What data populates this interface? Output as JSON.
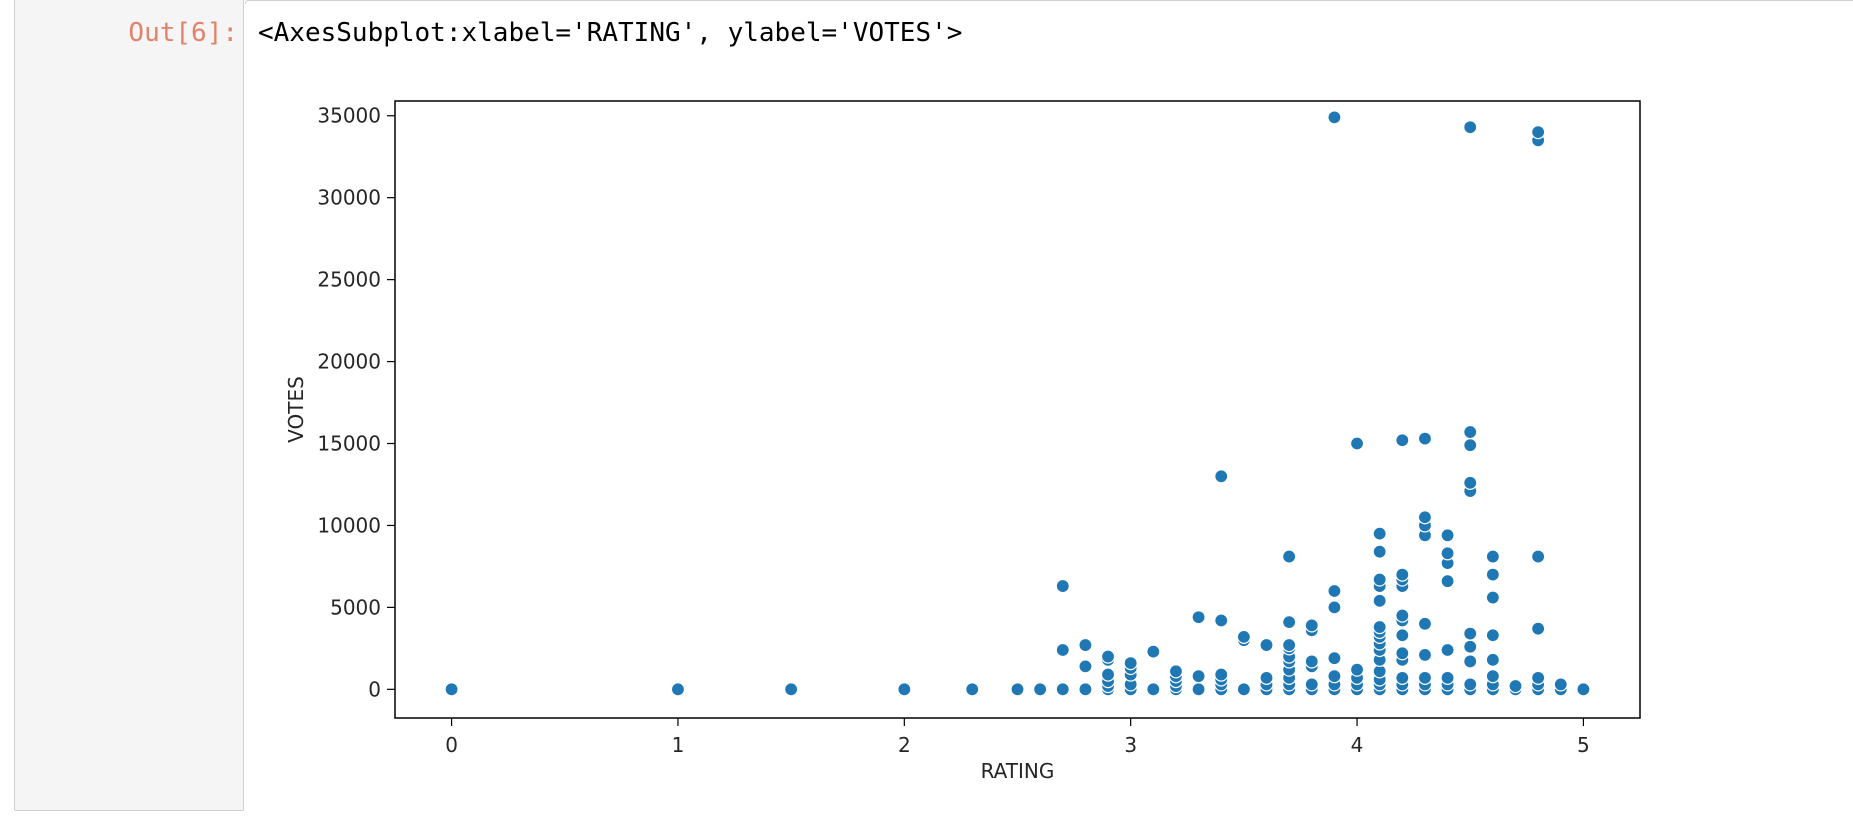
{
  "cell": {
    "prompt": "Out[6]:",
    "repr": "<AxesSubplot:xlabel='RATING', ylabel='VOTES'>"
  },
  "chart_data": {
    "type": "scatter",
    "title": "",
    "xlabel": "RATING",
    "ylabel": "VOTES",
    "xlim": [
      -0.25,
      5.25
    ],
    "ylim": [
      -1750,
      35900
    ],
    "xticks": [
      0,
      1,
      2,
      3,
      4,
      5
    ],
    "yticks": [
      0,
      5000,
      10000,
      15000,
      20000,
      25000,
      30000,
      35000
    ],
    "grid": false,
    "marker_color": "#1f77b4",
    "series": [
      {
        "points": [
          [
            0,
            0
          ],
          [
            1,
            0
          ],
          [
            1.5,
            0
          ],
          [
            2,
            0
          ],
          [
            2.3,
            0
          ],
          [
            2.5,
            0
          ],
          [
            2.6,
            0
          ],
          [
            2.7,
            0
          ],
          [
            2.7,
            2400
          ],
          [
            2.7,
            6300
          ],
          [
            2.8,
            0
          ],
          [
            2.8,
            1400
          ],
          [
            2.8,
            2700
          ],
          [
            2.9,
            0
          ],
          [
            2.9,
            200
          ],
          [
            2.9,
            500
          ],
          [
            2.9,
            900
          ],
          [
            2.9,
            1800
          ],
          [
            2.9,
            2000
          ],
          [
            3.0,
            0
          ],
          [
            3.0,
            300
          ],
          [
            3.0,
            900
          ],
          [
            3.0,
            1300
          ],
          [
            3.0,
            1600
          ],
          [
            3.1,
            0
          ],
          [
            3.1,
            2300
          ],
          [
            3.2,
            0
          ],
          [
            3.2,
            200
          ],
          [
            3.2,
            500
          ],
          [
            3.2,
            800
          ],
          [
            3.2,
            1100
          ],
          [
            3.3,
            0
          ],
          [
            3.3,
            800
          ],
          [
            3.3,
            4400
          ],
          [
            3.4,
            0
          ],
          [
            3.4,
            300
          ],
          [
            3.4,
            600
          ],
          [
            3.4,
            900
          ],
          [
            3.4,
            4200
          ],
          [
            3.4,
            13000
          ],
          [
            3.5,
            0
          ],
          [
            3.5,
            3000
          ],
          [
            3.5,
            3200
          ],
          [
            3.6,
            0
          ],
          [
            3.6,
            300
          ],
          [
            3.6,
            700
          ],
          [
            3.6,
            2700
          ],
          [
            3.7,
            0
          ],
          [
            3.7,
            300
          ],
          [
            3.7,
            700
          ],
          [
            3.7,
            1200
          ],
          [
            3.7,
            1700
          ],
          [
            3.7,
            2000
          ],
          [
            3.7,
            2500
          ],
          [
            3.7,
            2700
          ],
          [
            3.7,
            4100
          ],
          [
            3.7,
            8100
          ],
          [
            3.8,
            0
          ],
          [
            3.8,
            300
          ],
          [
            3.8,
            1400
          ],
          [
            3.8,
            1700
          ],
          [
            3.8,
            3600
          ],
          [
            3.8,
            3900
          ],
          [
            3.9,
            0
          ],
          [
            3.9,
            300
          ],
          [
            3.9,
            800
          ],
          [
            3.9,
            1900
          ],
          [
            3.9,
            5000
          ],
          [
            3.9,
            6000
          ],
          [
            3.9,
            34900
          ],
          [
            4.0,
            0
          ],
          [
            4.0,
            300
          ],
          [
            4.0,
            700
          ],
          [
            4.0,
            1200
          ],
          [
            4.0,
            15000
          ],
          [
            4.1,
            0
          ],
          [
            4.1,
            300
          ],
          [
            4.1,
            600
          ],
          [
            4.1,
            1100
          ],
          [
            4.1,
            1800
          ],
          [
            4.1,
            2400
          ],
          [
            4.1,
            2800
          ],
          [
            4.1,
            3200
          ],
          [
            4.1,
            3500
          ],
          [
            4.1,
            3800
          ],
          [
            4.1,
            5400
          ],
          [
            4.1,
            6300
          ],
          [
            4.1,
            6700
          ],
          [
            4.1,
            8400
          ],
          [
            4.1,
            9500
          ],
          [
            4.2,
            0
          ],
          [
            4.2,
            300
          ],
          [
            4.2,
            700
          ],
          [
            4.2,
            1800
          ],
          [
            4.2,
            2200
          ],
          [
            4.2,
            3300
          ],
          [
            4.2,
            4200
          ],
          [
            4.2,
            4500
          ],
          [
            4.2,
            6300
          ],
          [
            4.2,
            6700
          ],
          [
            4.2,
            7000
          ],
          [
            4.2,
            15200
          ],
          [
            4.3,
            0
          ],
          [
            4.3,
            300
          ],
          [
            4.3,
            700
          ],
          [
            4.3,
            2100
          ],
          [
            4.3,
            4000
          ],
          [
            4.3,
            9400
          ],
          [
            4.3,
            10000
          ],
          [
            4.3,
            10500
          ],
          [
            4.3,
            15300
          ],
          [
            4.4,
            0
          ],
          [
            4.4,
            300
          ],
          [
            4.4,
            700
          ],
          [
            4.4,
            2400
          ],
          [
            4.4,
            6600
          ],
          [
            4.4,
            7700
          ],
          [
            4.4,
            8300
          ],
          [
            4.4,
            9400
          ],
          [
            4.5,
            0
          ],
          [
            4.5,
            300
          ],
          [
            4.5,
            1700
          ],
          [
            4.5,
            2600
          ],
          [
            4.5,
            3400
          ],
          [
            4.5,
            12100
          ],
          [
            4.5,
            12600
          ],
          [
            4.5,
            14900
          ],
          [
            4.5,
            15700
          ],
          [
            4.5,
            34300
          ],
          [
            4.6,
            0
          ],
          [
            4.6,
            300
          ],
          [
            4.6,
            800
          ],
          [
            4.6,
            1800
          ],
          [
            4.6,
            3300
          ],
          [
            4.6,
            5600
          ],
          [
            4.6,
            7000
          ],
          [
            4.6,
            8100
          ],
          [
            4.7,
            0
          ],
          [
            4.7,
            200
          ],
          [
            4.8,
            0
          ],
          [
            4.8,
            300
          ],
          [
            4.8,
            700
          ],
          [
            4.8,
            3700
          ],
          [
            4.8,
            8100
          ],
          [
            4.8,
            33500
          ],
          [
            4.8,
            34000
          ],
          [
            4.9,
            0
          ],
          [
            4.9,
            300
          ],
          [
            5.0,
            0
          ]
        ]
      }
    ]
  }
}
